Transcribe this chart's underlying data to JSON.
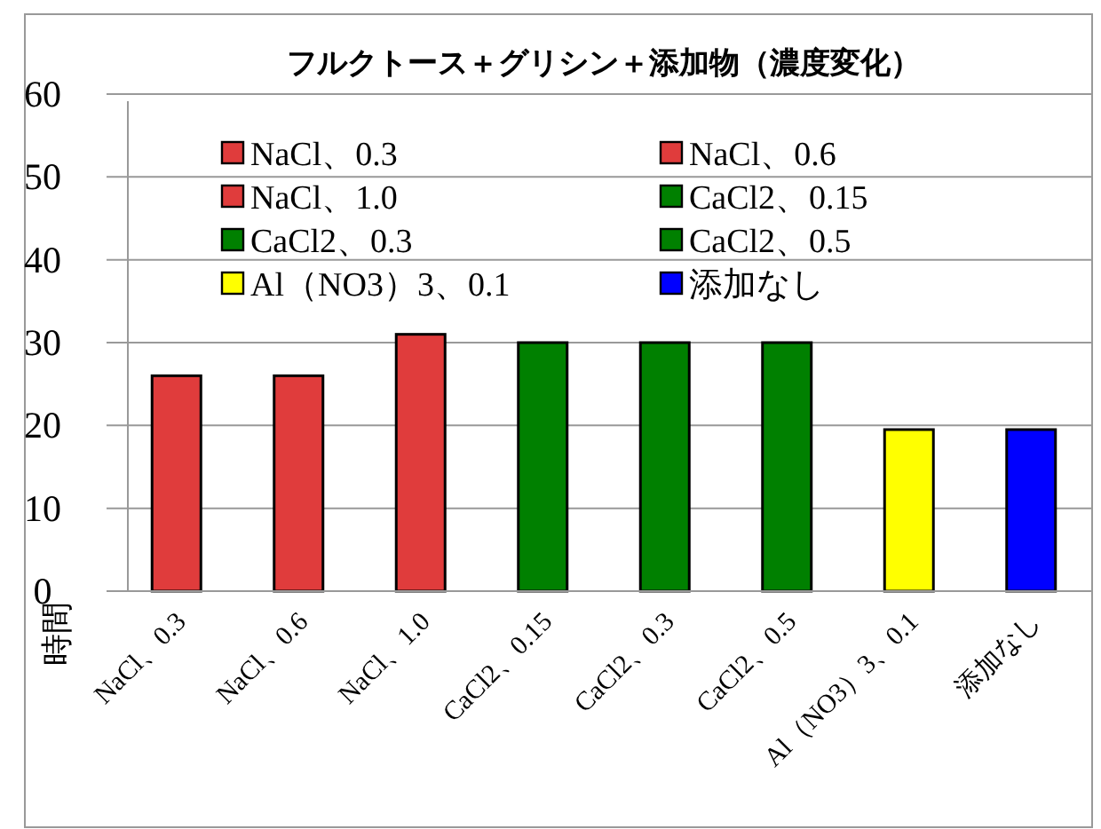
{
  "chart_data": {
    "type": "bar",
    "title": "フルクトース＋グリシン＋添加物（濃度変化）",
    "ylabel": "時間",
    "categories": [
      "NaCl、0.3",
      "NaCl、0.6",
      "NaCl、1.0",
      "CaCl2、0.15",
      "CaCl2、0.3",
      "CaCl2、0.5",
      "Al（NO3）3、0.1",
      "添加なし"
    ],
    "series": [
      {
        "name": "NaCl、0.3",
        "color": "#e03c3c",
        "values": [
          26,
          null,
          null,
          null,
          null,
          null,
          null,
          null
        ]
      },
      {
        "name": "NaCl、0.6",
        "color": "#e03c3c",
        "values": [
          null,
          26,
          null,
          null,
          null,
          null,
          null,
          null
        ]
      },
      {
        "name": "NaCl、1.0",
        "color": "#e03c3c",
        "values": [
          null,
          null,
          31,
          null,
          null,
          null,
          null,
          null
        ]
      },
      {
        "name": "CaCl2、0.15",
        "color": "#008000",
        "values": [
          null,
          null,
          null,
          30,
          null,
          null,
          null,
          null
        ]
      },
      {
        "name": "CaCl2、0.3",
        "color": "#008000",
        "values": [
          null,
          null,
          null,
          null,
          30,
          null,
          null,
          null
        ]
      },
      {
        "name": "CaCl2、0.5",
        "color": "#008000",
        "values": [
          null,
          null,
          null,
          null,
          null,
          30,
          null,
          null
        ]
      },
      {
        "name": "Al（NO3）3、0.1",
        "color": "#ffff00",
        "values": [
          null,
          null,
          null,
          null,
          null,
          null,
          19.5,
          null
        ]
      },
      {
        "name": "添加なし",
        "color": "#0000ff",
        "values": [
          null,
          null,
          null,
          null,
          null,
          null,
          null,
          19.5
        ]
      }
    ],
    "ylim": [
      0,
      60
    ],
    "yticks": [
      0,
      10,
      20,
      30,
      40,
      50,
      60
    ],
    "grid": "y",
    "legend": "top"
  }
}
